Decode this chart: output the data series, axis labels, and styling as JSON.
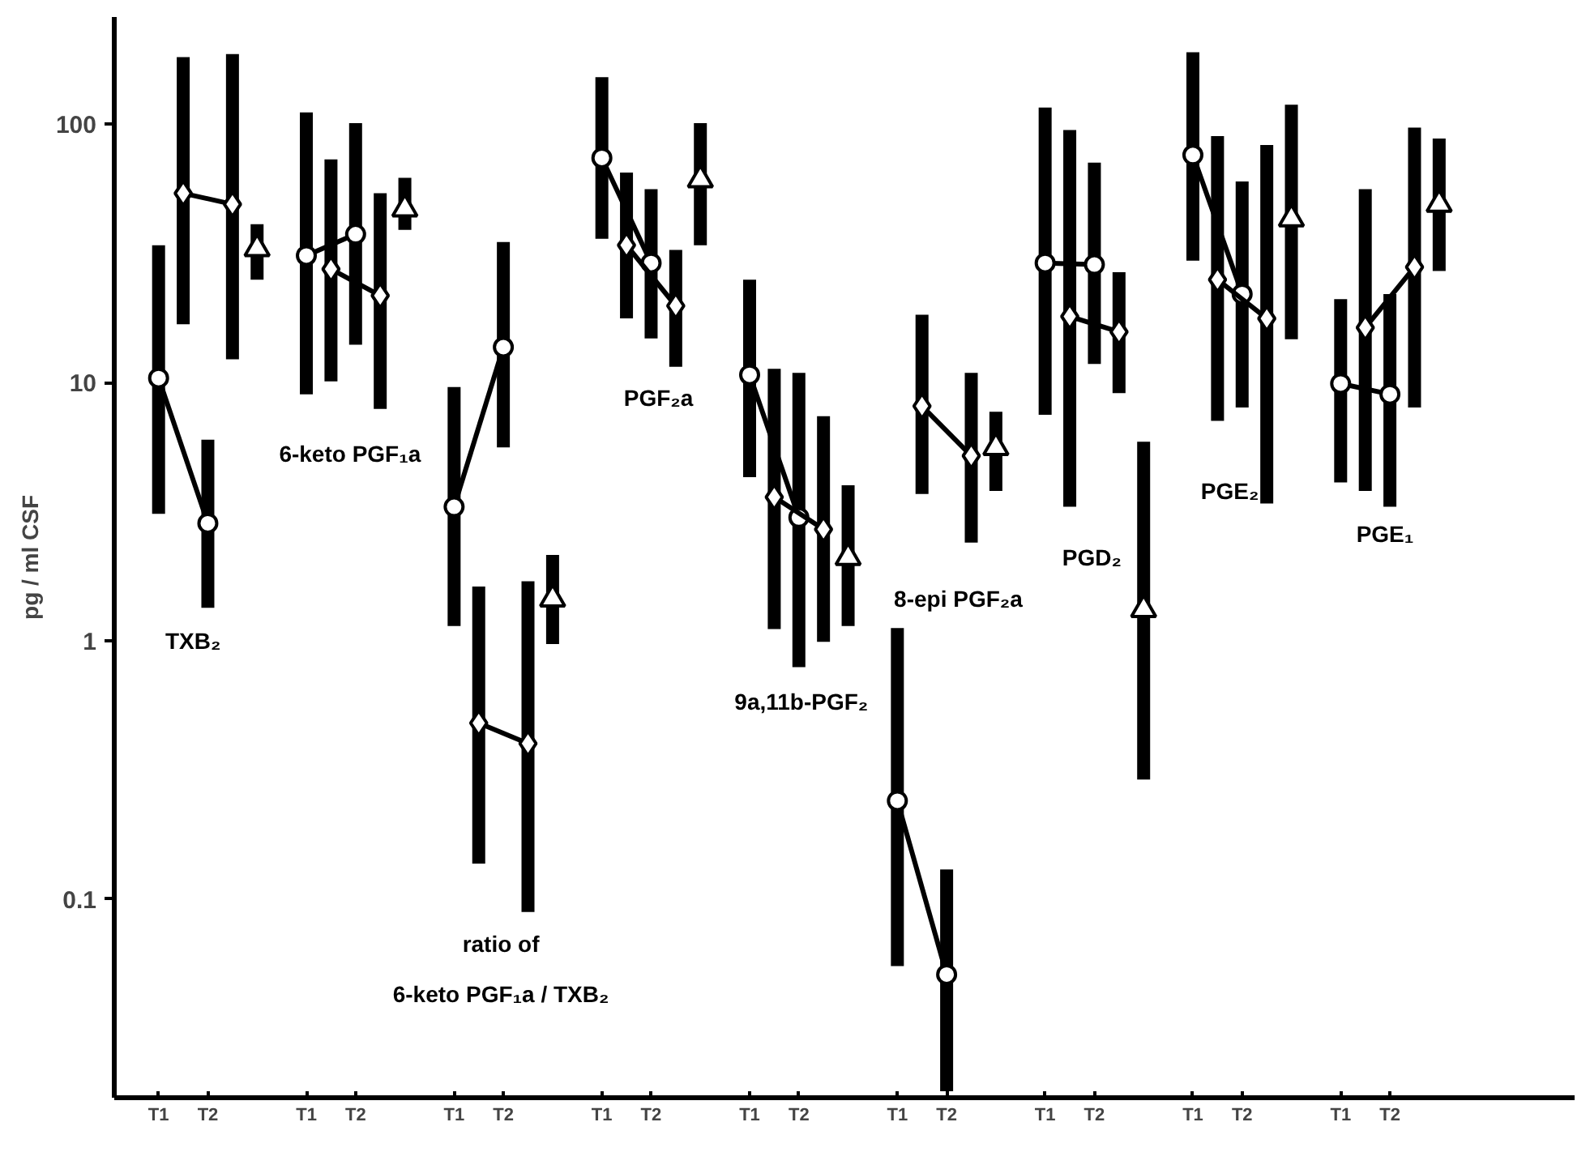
{
  "chart_data": {
    "type": "line",
    "ylabel": "pg / ml CSF",
    "log": "y",
    "grid": false,
    "line_style": "solid",
    "ylim": [
      0.017,
      260
    ],
    "yticks": [
      0.1,
      1,
      10,
      100
    ],
    "categories": [
      "T1",
      null,
      "T2",
      null,
      null,
      null,
      "T1",
      null,
      "T2",
      null,
      null,
      null,
      "T1",
      null,
      "T2",
      null,
      null,
      null,
      "T1",
      null,
      "T2",
      null,
      null,
      null,
      "T1",
      null,
      "T2",
      null,
      null,
      null,
      "T1",
      null,
      "T2",
      null,
      null,
      null,
      "T1",
      null,
      "T2",
      null,
      null,
      null,
      "T1",
      null,
      "T2",
      null,
      null,
      null,
      "T1",
      null,
      "T2",
      null,
      null
    ],
    "series": [
      {
        "marker": "circle",
        "color": "#000000",
        "values": [
          10.4,
          null,
          2.85,
          null,
          null,
          null,
          31,
          null,
          37.5,
          null,
          null,
          null,
          3.3,
          null,
          13.7,
          null,
          null,
          null,
          74,
          null,
          29,
          null,
          null,
          null,
          10.7,
          null,
          3.0,
          null,
          null,
          null,
          0.24,
          null,
          0.051,
          null,
          null,
          null,
          29,
          null,
          28.6,
          null,
          null,
          null,
          76,
          null,
          22,
          null,
          null,
          null,
          9.9,
          null,
          9.0,
          null,
          null
        ],
        "errors": [
          [
            3.1,
            34
          ],
          null,
          [
            1.34,
            6.0
          ],
          null,
          null,
          null,
          [
            9.0,
            111
          ],
          null,
          [
            14,
            101
          ],
          null,
          null,
          null,
          [
            1.14,
            9.6
          ],
          null,
          [
            5.6,
            35
          ],
          null,
          null,
          null,
          [
            36,
            152
          ],
          null,
          [
            14.8,
            56
          ],
          null,
          null,
          null,
          [
            4.3,
            25
          ],
          null,
          [
            0.79,
            10.9
          ],
          null,
          null,
          null,
          [
            0.055,
            1.12
          ],
          null,
          [
            0.018,
            0.13
          ],
          null,
          null,
          null,
          [
            7.5,
            116
          ],
          null,
          [
            11.8,
            71
          ],
          null,
          null,
          null,
          [
            29.6,
            190
          ],
          null,
          [
            8.0,
            60
          ],
          null,
          null,
          null,
          [
            4.1,
            21
          ],
          null,
          [
            3.3,
            22
          ],
          null,
          null
        ]
      },
      {
        "marker": "diamond",
        "color": "#000000",
        "values": [
          null,
          54,
          null,
          49,
          null,
          null,
          null,
          27.5,
          null,
          21.7,
          null,
          null,
          null,
          0.48,
          null,
          0.4,
          null,
          null,
          null,
          34,
          null,
          19.8,
          null,
          null,
          null,
          3.6,
          null,
          2.7,
          null,
          null,
          null,
          8.1,
          null,
          5.2,
          null,
          null,
          null,
          18,
          null,
          15.7,
          null,
          null,
          null,
          25,
          null,
          17.7,
          null,
          null,
          null,
          16.3,
          null,
          28,
          null
        ],
        "errors": [
          null,
          [
            16.8,
            182
          ],
          null,
          [
            12.3,
            187
          ],
          null,
          null,
          null,
          [
            10.1,
            73
          ],
          null,
          [
            7.9,
            54
          ],
          null,
          null,
          null,
          [
            0.137,
            1.62
          ],
          null,
          [
            0.089,
            1.7
          ],
          null,
          null,
          null,
          [
            17.7,
            65
          ],
          null,
          [
            11.5,
            32.6
          ],
          null,
          null,
          null,
          [
            1.11,
            11.3
          ],
          null,
          [
            0.99,
            7.4
          ],
          null,
          null,
          null,
          [
            3.7,
            18.3
          ],
          null,
          [
            2.4,
            10.9
          ],
          null,
          null,
          null,
          [
            3.3,
            95
          ],
          null,
          [
            9.1,
            26.7
          ],
          null,
          null,
          null,
          [
            7.1,
            90
          ],
          null,
          [
            3.4,
            83
          ],
          null,
          null,
          null,
          [
            3.8,
            56
          ],
          null,
          [
            8.0,
            97
          ],
          null
        ]
      },
      {
        "type": "scatter",
        "marker": "triangle",
        "color": "#000000",
        "values": [
          null,
          null,
          null,
          null,
          33,
          null,
          null,
          null,
          null,
          null,
          47,
          null,
          null,
          null,
          null,
          null,
          1.45,
          null,
          null,
          null,
          null,
          null,
          61,
          null,
          null,
          null,
          null,
          null,
          2.1,
          null,
          null,
          null,
          null,
          null,
          5.6,
          null,
          null,
          null,
          null,
          null,
          1.32,
          null,
          null,
          null,
          null,
          null,
          43,
          null,
          null,
          null,
          null,
          null,
          49
        ],
        "errors": [
          null,
          null,
          null,
          null,
          [
            25,
            41
          ],
          null,
          null,
          null,
          null,
          null,
          [
            39,
            62
          ],
          null,
          null,
          null,
          null,
          null,
          [
            0.97,
            2.15
          ],
          null,
          null,
          null,
          null,
          null,
          [
            34,
            101
          ],
          null,
          null,
          null,
          null,
          null,
          [
            1.14,
            4.0
          ],
          null,
          null,
          null,
          null,
          null,
          [
            3.8,
            7.7
          ],
          null,
          null,
          null,
          null,
          null,
          [
            0.29,
            5.9
          ],
          null,
          null,
          null,
          null,
          null,
          [
            14.7,
            119
          ],
          null,
          null,
          null,
          null,
          null,
          [
            27,
            88
          ]
        ]
      }
    ],
    "annotations": [
      "TXB₂",
      "6-keto  PGF₁a",
      "ratio of",
      "6-keto PGF₁a / TXB₂",
      "PGF₂a",
      "9a,11b-PGF₂",
      "8-epi  PGF₂a",
      "PGD₂",
      "PGE₂",
      "PGE₁"
    ]
  }
}
